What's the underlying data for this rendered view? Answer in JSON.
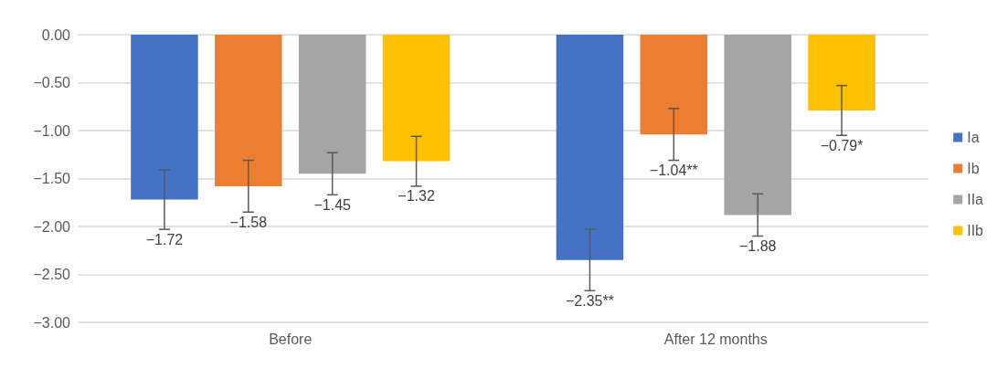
{
  "chart_data": {
    "type": "bar",
    "categories": [
      "Before",
      "After 12 months"
    ],
    "series": [
      {
        "name": "Ia",
        "color": "#4472c4",
        "values": [
          -1.72,
          -2.35
        ],
        "errors": [
          0.31,
          0.32
        ],
        "value_labels": [
          "−1.72",
          "−2.35**"
        ]
      },
      {
        "name": "Ib",
        "color": "#ed7d31",
        "values": [
          -1.58,
          -1.04
        ],
        "errors": [
          0.27,
          0.27
        ],
        "value_labels": [
          "−1.58",
          "−1.04**"
        ]
      },
      {
        "name": "IIa",
        "color": "#a5a5a5",
        "values": [
          -1.45,
          -1.88
        ],
        "errors": [
          0.22,
          0.22
        ],
        "value_labels": [
          "−1.45",
          "−1.88"
        ]
      },
      {
        "name": "IIb",
        "color": "#ffc000",
        "values": [
          -1.32,
          -0.79
        ],
        "errors": [
          0.26,
          0.26
        ],
        "value_labels": [
          "−1.32",
          "−0.79*"
        ]
      }
    ],
    "ylim": [
      -3,
      0
    ],
    "yticks": [
      {
        "value": -3,
        "label": "−3.00"
      },
      {
        "value": -2.5,
        "label": "−2.50"
      },
      {
        "value": -2,
        "label": "−2.00"
      },
      {
        "value": -1.5,
        "label": "−1.50"
      },
      {
        "value": -1,
        "label": "−1.00"
      },
      {
        "value": -0.5,
        "label": "−0.50"
      },
      {
        "value": 0,
        "label": "0.00"
      }
    ],
    "grid": "y",
    "legend": "right"
  }
}
